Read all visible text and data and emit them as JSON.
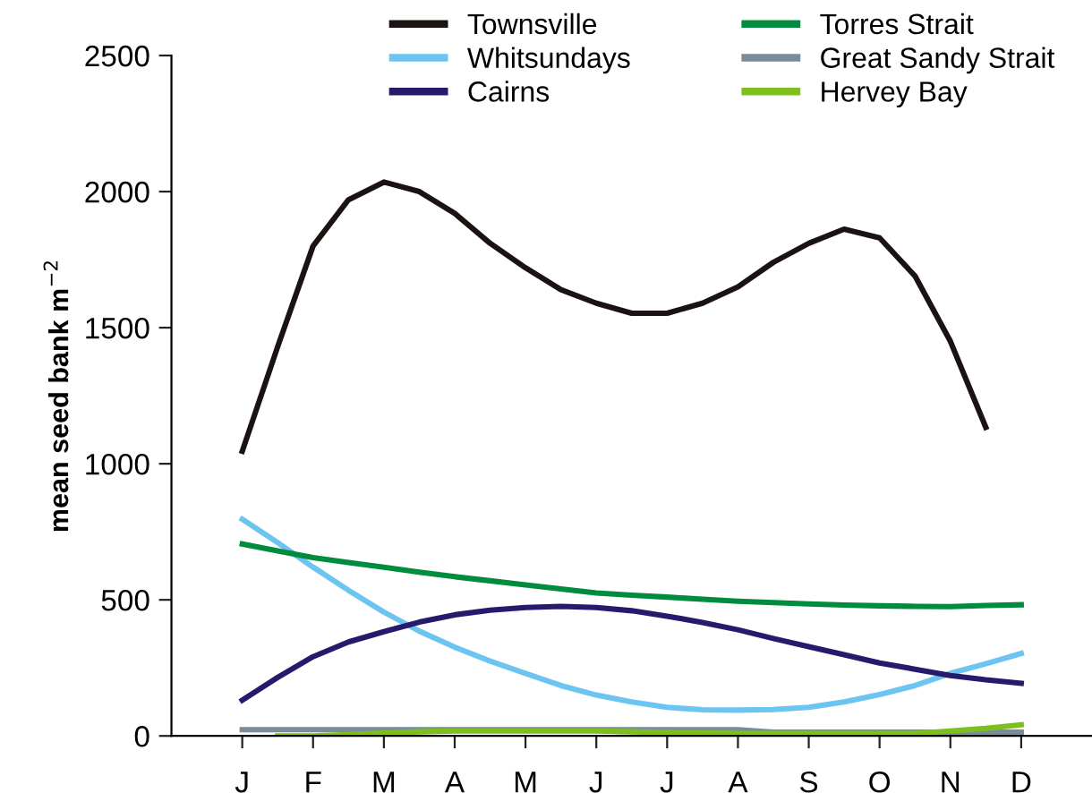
{
  "chart_data": {
    "type": "line",
    "ylabel": "mean seed bank m$^{−2}$",
    "ylim": [
      0,
      2500
    ],
    "yticks": [
      0,
      500,
      1000,
      1500,
      2000,
      2500
    ],
    "categories": [
      null,
      null,
      "J",
      null,
      "F",
      null,
      "M",
      null,
      "A",
      null,
      "M",
      null,
      "J",
      null,
      "J",
      null,
      "A",
      null,
      "S",
      null,
      "O",
      null,
      "N",
      null,
      "D",
      null,
      null
    ],
    "grid": false,
    "legend": "top",
    "marker": "none",
    "line_style": "solid",
    "series": [
      {
        "name": "Townsville",
        "color": "#1a1311",
        "values": [
          null,
          null,
          1046,
          1430,
          1800,
          1970,
          2035,
          2000,
          1920,
          1810,
          1720,
          1640,
          1590,
          1553,
          1553,
          1590,
          1650,
          1740,
          1810,
          1862,
          1830,
          1690,
          1450,
          1134,
          null,
          null,
          null
        ]
      },
      {
        "name": "Whitsundays",
        "color": "#6cc4f0",
        "values": [
          null,
          null,
          796,
          710,
          620,
          535,
          455,
          385,
          326,
          275,
          230,
          185,
          150,
          125,
          105,
          96,
          95,
          97,
          105,
          125,
          152,
          185,
          230,
          265,
          303,
          null,
          null
        ]
      },
      {
        "name": "Cairns",
        "color": "#251a6b",
        "values": [
          null,
          null,
          131,
          215,
          291,
          345,
          383,
          418,
          445,
          462,
          472,
          476,
          472,
          460,
          440,
          417,
          390,
          358,
          328,
          298,
          268,
          245,
          222,
          206,
          193,
          null,
          null
        ]
      },
      {
        "name": "Torres Strait",
        "color": "#008c3c",
        "values": [
          null,
          null,
          705,
          680,
          655,
          637,
          620,
          602,
          585,
          570,
          555,
          540,
          525,
          517,
          510,
          502,
          495,
          490,
          485,
          481,
          478,
          476,
          475,
          479,
          482,
          null,
          null
        ]
      },
      {
        "name": "Great Sandy Strait",
        "color": "#7a8c99",
        "values": [
          null,
          null,
          23,
          23,
          23,
          23,
          23,
          23,
          23,
          23,
          23,
          23,
          23,
          23,
          23,
          23,
          23,
          14,
          14,
          14,
          14,
          14,
          14,
          14,
          14,
          null,
          null
        ]
      },
      {
        "name": "Hervey Bay",
        "color": "#7dc01e",
        "values": [
          null,
          null,
          null,
          0,
          0,
          5,
          10,
          15,
          18,
          18,
          18,
          18,
          18,
          15,
          12,
          10,
          9,
          9,
          9,
          9,
          9,
          9,
          18,
          28,
          41,
          null,
          null
        ]
      }
    ]
  }
}
